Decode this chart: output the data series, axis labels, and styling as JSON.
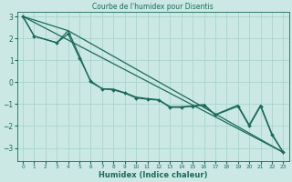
{
  "title": "Courbe de l'humidex pour Disentis",
  "xlabel": "Humidex (Indice chaleur)",
  "background_color": "#cce8e4",
  "grid_color": "#a8d5cc",
  "line_color": "#1a6b5a",
  "xlim": [
    -0.5,
    23.5
  ],
  "ylim": [
    -3.6,
    3.2
  ],
  "yticks": [
    -3,
    -2,
    -1,
    0,
    1,
    2,
    3
  ],
  "xticks": [
    0,
    1,
    2,
    3,
    4,
    5,
    6,
    7,
    8,
    9,
    10,
    11,
    12,
    13,
    14,
    15,
    16,
    17,
    18,
    19,
    20,
    21,
    22,
    23
  ],
  "line_with_markers": {
    "x": [
      0,
      1,
      3,
      4,
      5,
      6,
      7,
      8,
      9,
      10,
      11,
      12,
      13,
      14,
      15,
      16,
      17,
      19,
      20,
      21,
      22,
      23
    ],
    "y": [
      3.0,
      2.1,
      1.8,
      2.2,
      1.1,
      0.05,
      -0.3,
      -0.35,
      -0.5,
      -0.72,
      -0.78,
      -0.82,
      -1.15,
      -1.15,
      -1.1,
      -1.05,
      -1.5,
      -1.1,
      -2.0,
      -1.1,
      -2.4,
      -3.2
    ]
  },
  "straight_line1": {
    "x": [
      0,
      23
    ],
    "y": [
      3.0,
      -3.2
    ]
  },
  "straight_line2": {
    "x": [
      0,
      4,
      23
    ],
    "y": [
      3.0,
      2.35,
      -3.2
    ]
  },
  "smooth_line": {
    "x": [
      0,
      1,
      3,
      4,
      5,
      6,
      7,
      8,
      9,
      10,
      11,
      12,
      13,
      14,
      15,
      16,
      17,
      19,
      20,
      21,
      22,
      23
    ],
    "y": [
      3.0,
      2.1,
      1.8,
      2.35,
      1.2,
      0.0,
      -0.3,
      -0.32,
      -0.48,
      -0.68,
      -0.75,
      -0.8,
      -1.12,
      -1.12,
      -1.08,
      -1.02,
      -1.48,
      -1.05,
      -1.95,
      -1.05,
      -2.35,
      -3.2
    ]
  }
}
